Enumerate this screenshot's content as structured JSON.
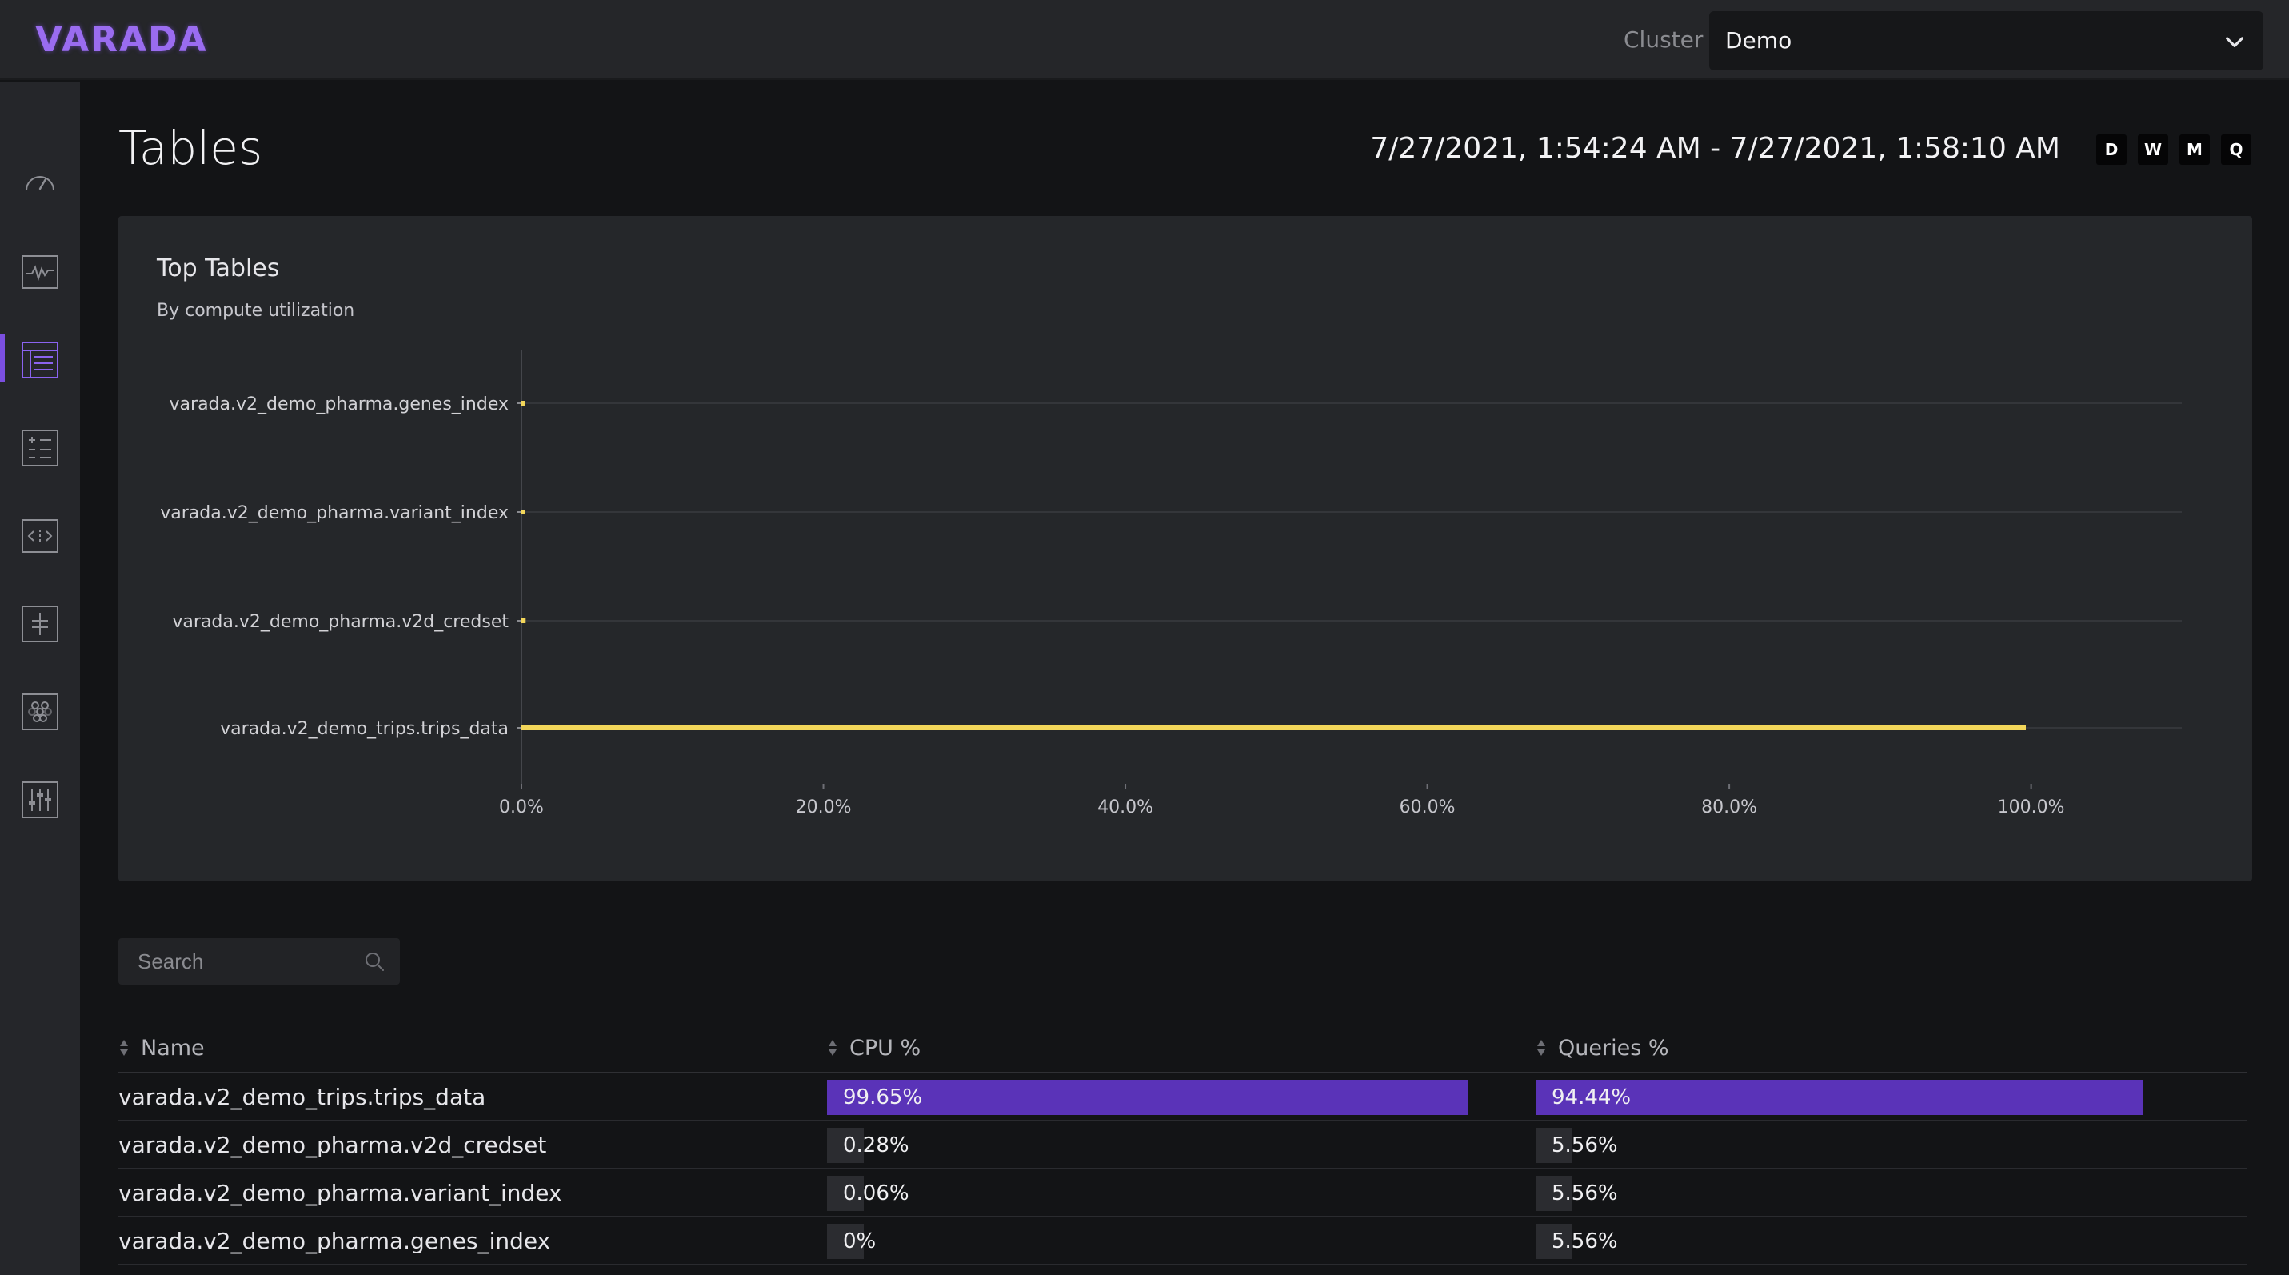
{
  "app": {
    "logo": "VARADA"
  },
  "header": {
    "cluster_label": "Cluster",
    "cluster_value": "Demo"
  },
  "sidebar": {
    "items": [
      {
        "icon": "gauge-icon",
        "active": false
      },
      {
        "icon": "activity-icon",
        "active": false
      },
      {
        "icon": "table-icon",
        "active": true
      },
      {
        "icon": "list-icon",
        "active": false
      },
      {
        "icon": "code-icon",
        "active": false
      },
      {
        "icon": "split-icon",
        "active": false
      },
      {
        "icon": "grapes-icon",
        "active": false
      },
      {
        "icon": "sliders-icon",
        "active": false
      }
    ]
  },
  "page": {
    "title": "Tables",
    "date_range": "7/27/2021, 1:54:24 AM - 7/27/2021, 1:58:10 AM",
    "range_buttons": [
      "D",
      "W",
      "M",
      "Q"
    ]
  },
  "card": {
    "title": "Top Tables",
    "subtitle": "By compute utilization"
  },
  "chart_data": {
    "type": "bar",
    "orientation": "horizontal",
    "title": "Top Tables",
    "subtitle": "By compute utilization",
    "categories": [
      "varada.v2_demo_pharma.genes_index",
      "varada.v2_demo_pharma.variant_index",
      "varada.v2_demo_pharma.v2d_credset",
      "varada.v2_demo_trips.trips_data"
    ],
    "values": [
      0,
      0.06,
      0.28,
      99.65
    ],
    "xlim": [
      0,
      105
    ],
    "x_ticks": [
      "0.0%",
      "20.0%",
      "40.0%",
      "60.0%",
      "80.0%",
      "100.0%"
    ],
    "x_tick_values": [
      0,
      20,
      40,
      60,
      80,
      100
    ],
    "color": "#f2d65a",
    "grid": true
  },
  "search": {
    "placeholder": "Search"
  },
  "table": {
    "columns": [
      "Name",
      "CPU %",
      "Queries %"
    ],
    "rows": [
      {
        "name": "varada.v2_demo_trips.trips_data",
        "cpu": "99.65%",
        "cpu_value": 99.65,
        "queries": "94.44%",
        "queries_value": 94.44
      },
      {
        "name": "varada.v2_demo_pharma.v2d_credset",
        "cpu": "0.28%",
        "cpu_value": 0.28,
        "queries": "5.56%",
        "queries_value": 5.56
      },
      {
        "name": "varada.v2_demo_pharma.variant_index",
        "cpu": "0.06%",
        "cpu_value": 0.06,
        "queries": "5.56%",
        "queries_value": 5.56
      },
      {
        "name": "varada.v2_demo_pharma.genes_index",
        "cpu": "0%",
        "cpu_value": 0,
        "queries": "5.56%",
        "queries_value": 5.56
      }
    ]
  },
  "colors": {
    "accent": "#7b4fe0",
    "bar_fill": "#5a33b8",
    "chart_line": "#f2d65a",
    "background": "#131416",
    "card": "#25272a"
  }
}
